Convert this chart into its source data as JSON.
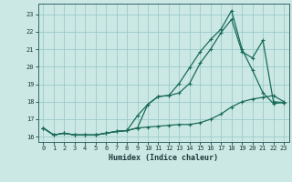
{
  "xlabel": "Humidex (Indice chaleur)",
  "bg_color": "#cce8e4",
  "grid_color": "#99cccc",
  "line_color": "#1a6b5a",
  "xlim": [
    -0.5,
    23.5
  ],
  "ylim": [
    15.7,
    23.6
  ],
  "xticks": [
    0,
    1,
    2,
    3,
    4,
    5,
    6,
    7,
    8,
    9,
    10,
    11,
    12,
    13,
    14,
    15,
    16,
    17,
    18,
    19,
    20,
    21,
    22,
    23
  ],
  "yticks": [
    16,
    17,
    18,
    19,
    20,
    21,
    22,
    23
  ],
  "line1_x": [
    0,
    1,
    2,
    3,
    4,
    5,
    6,
    7,
    8,
    9,
    10,
    11,
    12,
    13,
    14,
    15,
    16,
    17,
    18,
    19,
    20,
    21,
    22,
    23
  ],
  "line1_y": [
    16.5,
    16.1,
    16.2,
    16.1,
    16.1,
    16.1,
    16.2,
    16.3,
    16.35,
    16.5,
    16.55,
    16.6,
    16.65,
    16.7,
    16.7,
    16.8,
    17.0,
    17.3,
    17.7,
    18.0,
    18.15,
    18.25,
    18.35,
    18.0
  ],
  "line2_x": [
    0,
    1,
    2,
    3,
    4,
    5,
    6,
    7,
    8,
    9,
    10,
    11,
    12,
    13,
    14,
    15,
    16,
    17,
    18,
    19,
    20,
    21,
    22,
    23
  ],
  "line2_y": [
    16.5,
    16.1,
    16.2,
    16.1,
    16.1,
    16.1,
    16.2,
    16.3,
    16.35,
    17.2,
    17.85,
    18.3,
    18.35,
    19.05,
    19.95,
    20.85,
    21.55,
    22.15,
    23.2,
    21.0,
    19.8,
    18.5,
    17.9,
    17.95
  ],
  "line3_x": [
    0,
    1,
    2,
    3,
    4,
    5,
    6,
    7,
    8,
    9,
    10,
    11,
    12,
    13,
    14,
    15,
    16,
    17,
    18,
    19,
    20,
    21,
    22,
    23
  ],
  "line3_y": [
    16.5,
    16.1,
    16.2,
    16.1,
    16.1,
    16.1,
    16.2,
    16.3,
    16.35,
    16.5,
    17.85,
    18.3,
    18.35,
    18.5,
    19.05,
    20.2,
    21.0,
    21.95,
    22.7,
    20.85,
    20.5,
    21.5,
    18.0,
    17.95
  ]
}
